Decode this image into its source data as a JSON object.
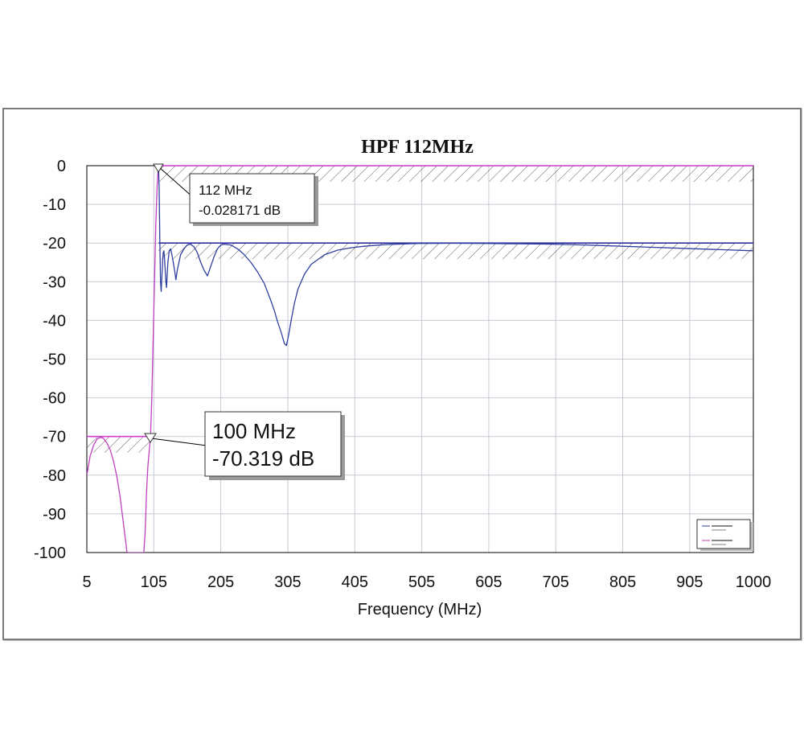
{
  "chart_data": {
    "type": "line",
    "title": "HPF 112MHz",
    "xlabel": "Frequency (MHz)",
    "ylabel": "",
    "xlim": [
      5,
      1000
    ],
    "ylim": [
      -100,
      0
    ],
    "x_ticks": [
      5,
      105,
      205,
      305,
      405,
      505,
      605,
      705,
      805,
      905,
      1000
    ],
    "y_ticks": [
      0,
      -10,
      -20,
      -30,
      -40,
      -50,
      -60,
      -70,
      -80,
      -90,
      -100
    ],
    "grid": true,
    "legend_position": "bottom-right",
    "series": [
      {
        "color": "#c040c0",
        "x": [
          5,
          10,
          15,
          20,
          25,
          30,
          35,
          40,
          45,
          50,
          55,
          60,
          65,
          70,
          75,
          80,
          85,
          90,
          92,
          94,
          96,
          98,
          100,
          102,
          104,
          106,
          108,
          110,
          112,
          116,
          125,
          150,
          200,
          300,
          400,
          500,
          600,
          700,
          800,
          900,
          1000
        ],
        "y": [
          -80,
          -75,
          -72.3,
          -70.7,
          -70.2,
          -70.5,
          -71.7,
          -73.5,
          -76.5,
          -80.5,
          -86,
          -93,
          -100,
          -100,
          -100,
          -100,
          -100,
          -100,
          -95,
          -85,
          -78,
          -74,
          -70.3,
          -60,
          -45,
          -30,
          -15,
          -5,
          -0.03,
          -0.01,
          0,
          0,
          0,
          0,
          0,
          0,
          0,
          0,
          0,
          0,
          0
        ]
      },
      {
        "color": "#2f3f9f",
        "x": [
          112,
          113,
          114,
          115,
          116,
          117,
          118,
          119,
          120,
          121,
          122,
          123,
          124,
          125,
          126,
          127,
          128,
          130,
          132,
          134,
          136,
          138,
          140,
          145,
          150,
          155,
          160,
          165,
          170,
          175,
          180,
          185,
          190,
          195,
          200,
          205,
          210,
          220,
          230,
          240,
          250,
          260,
          270,
          280,
          285,
          290,
          295,
          300,
          303,
          306,
          310,
          315,
          320,
          330,
          340,
          360,
          380,
          400,
          420,
          450,
          500,
          550,
          600,
          650,
          700,
          750,
          800,
          850,
          900,
          950,
          1000
        ],
        "y": [
          -0.3,
          -6,
          -20,
          -30,
          -32.5,
          -29,
          -25,
          -22.5,
          -22,
          -24,
          -27,
          -30,
          -31.5,
          -28,
          -25,
          -23.5,
          -22,
          -21.5,
          -23,
          -25,
          -27,
          -29.5,
          -27,
          -23,
          -21.5,
          -20.5,
          -20.3,
          -21,
          -22.5,
          -25,
          -27,
          -28.5,
          -26,
          -23.5,
          -21.5,
          -20.5,
          -20.3,
          -20.5,
          -21.5,
          -23,
          -25,
          -27.5,
          -30.5,
          -35,
          -37.5,
          -40.5,
          -43,
          -46,
          -46.5,
          -44,
          -40,
          -35.5,
          -32,
          -28,
          -25.5,
          -23,
          -21.8,
          -21.2,
          -20.8,
          -20.4,
          -20.1,
          -20.05,
          -20.1,
          -20.2,
          -20.3,
          -20.5,
          -20.8,
          -21.1,
          -21.4,
          -21.7,
          -22
        ]
      }
    ],
    "limit_lines": [
      {
        "x": [
          112,
          1000
        ],
        "y": 0,
        "color": "#d040d0"
      },
      {
        "x": [
          112,
          1000
        ],
        "y": -20,
        "color": "#3030a0"
      },
      {
        "x": [
          5,
          100
        ],
        "y": -70,
        "color": "#d040d0"
      }
    ],
    "markers": [
      {
        "x": 112,
        "y": -0.028171,
        "label_line1": "112 MHz",
        "label_line2": "-0.028171 dB"
      },
      {
        "x": 100,
        "y": -70.319,
        "label_line1": "100 MHz",
        "label_line2": "-70.319 dB"
      }
    ]
  }
}
